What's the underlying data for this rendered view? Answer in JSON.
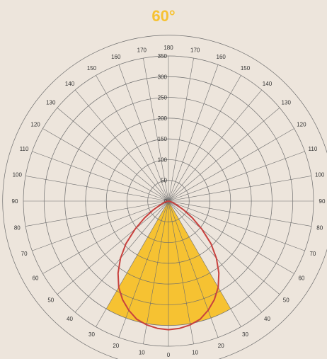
{
  "chart_data": {
    "type": "polar-line",
    "title": "60°",
    "radial_ticks": [
      "0",
      "50",
      "100",
      "150",
      "200",
      "250",
      "300",
      "350"
    ],
    "rmax": 350,
    "angle_ticks_right": [
      "0",
      "10",
      "20",
      "30",
      "40",
      "50",
      "60",
      "70",
      "80",
      "90",
      "100",
      "110",
      "120",
      "130",
      "140",
      "150",
      "160",
      "170",
      "180"
    ],
    "angle_ticks_left": [
      "10",
      "20",
      "30",
      "40",
      "50",
      "60",
      "70",
      "80",
      "90",
      "100",
      "110",
      "120",
      "130",
      "140",
      "150",
      "160",
      "170"
    ],
    "beam_angle_deg": 60,
    "beam_intensity": 300,
    "series": [
      {
        "color": "#c8413e",
        "angles": [
          0,
          5,
          10,
          15,
          20,
          25,
          30,
          35,
          40,
          45,
          50,
          55,
          60,
          65,
          70,
          75,
          80
        ],
        "values": [
          310,
          308,
          303,
          295,
          280,
          262,
          240,
          212,
          180,
          145,
          105,
          70,
          42,
          22,
          12,
          6,
          3
        ]
      }
    ],
    "colors": {
      "beam_fill": "#f6c232",
      "curve": "#c8413e",
      "title": "#f6c232",
      "grid": "#6e6e6e",
      "background": "#ede5dc"
    }
  }
}
